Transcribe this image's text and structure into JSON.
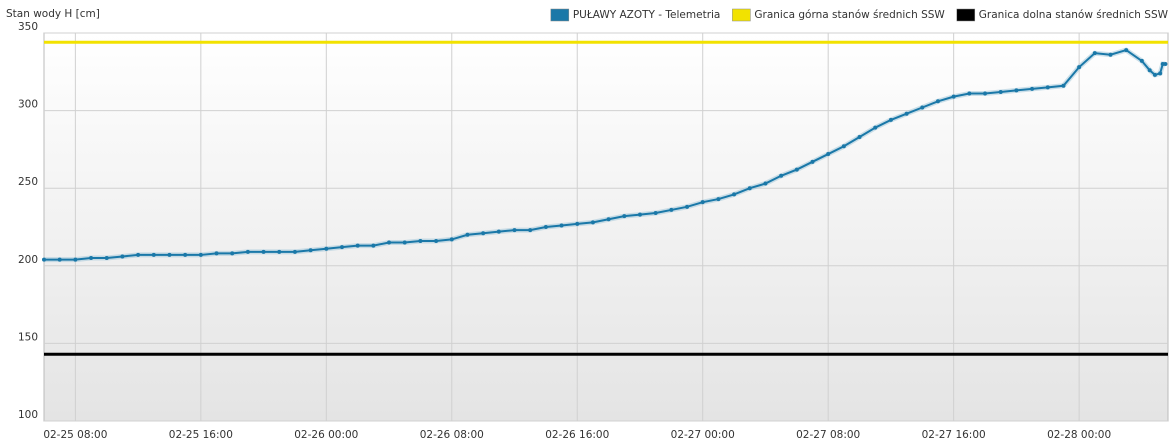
{
  "chart_data": {
    "type": "line",
    "y_label": "Stan wody H [cm]",
    "x": [
      "02-25 06:00",
      "02-25 07:00",
      "02-25 08:00",
      "02-25 09:00",
      "02-25 10:00",
      "02-25 11:00",
      "02-25 12:00",
      "02-25 13:00",
      "02-25 14:00",
      "02-25 15:00",
      "02-25 16:00",
      "02-25 17:00",
      "02-25 18:00",
      "02-25 19:00",
      "02-25 20:00",
      "02-25 21:00",
      "02-25 22:00",
      "02-25 23:00",
      "02-26 00:00",
      "02-26 01:00",
      "02-26 02:00",
      "02-26 03:00",
      "02-26 04:00",
      "02-26 05:00",
      "02-26 06:00",
      "02-26 07:00",
      "02-26 08:00",
      "02-26 09:00",
      "02-26 10:00",
      "02-26 11:00",
      "02-26 12:00",
      "02-26 13:00",
      "02-26 14:00",
      "02-26 15:00",
      "02-26 16:00",
      "02-26 17:00",
      "02-26 18:00",
      "02-26 19:00",
      "02-26 20:00",
      "02-26 21:00",
      "02-26 22:00",
      "02-26 23:00",
      "02-27 00:00",
      "02-27 01:00",
      "02-27 02:00",
      "02-27 03:00",
      "02-27 04:00",
      "02-27 05:00",
      "02-27 06:00",
      "02-27 07:00",
      "02-27 08:00",
      "02-27 09:00",
      "02-27 10:00",
      "02-27 11:00",
      "02-27 12:00",
      "02-27 13:00",
      "02-27 14:00",
      "02-27 15:00",
      "02-27 16:00",
      "02-27 17:00",
      "02-27 18:00",
      "02-27 19:00",
      "02-27 20:00",
      "02-27 21:00",
      "02-27 22:00",
      "02-27 23:00",
      "02-28 00:00",
      "02-28 01:00",
      "02-28 02:00",
      "02-28 03:00",
      "02-28 04:00",
      "02-28 04:30",
      "02-28 04:50",
      "02-28 05:10",
      "02-28 05:20",
      "02-28 05:30"
    ],
    "series": [
      {
        "name": "PUŁAWY AZOTY - Telemetria",
        "color": "#1a78a8",
        "values": [
          204,
          204,
          204,
          205,
          205,
          206,
          207,
          207,
          207,
          207,
          207,
          208,
          208,
          209,
          209,
          209,
          209,
          210,
          211,
          212,
          213,
          213,
          215,
          215,
          216,
          216,
          217,
          220,
          221,
          222,
          223,
          223,
          225,
          226,
          227,
          228,
          230,
          232,
          233,
          234,
          236,
          238,
          241,
          243,
          246,
          250,
          253,
          258,
          262,
          267,
          272,
          277,
          283,
          289,
          294,
          298,
          302,
          306,
          309,
          311,
          311,
          312,
          313,
          314,
          315,
          316,
          328,
          337,
          336,
          339,
          332,
          326,
          323,
          324,
          330,
          330
        ]
      }
    ],
    "reference_lines": [
      {
        "name": "Granica górna stanów średnich SSW",
        "color": "#f2e200",
        "value": 344
      },
      {
        "name": "Granica dolna stanów średnich SSW",
        "color": "#000000",
        "value": 143
      }
    ],
    "xlim": [
      "02-25 06:00",
      "02-28 05:40"
    ],
    "xticks": [
      "02-25 08:00",
      "02-25 16:00",
      "02-26 00:00",
      "02-26 08:00",
      "02-26 16:00",
      "02-27 00:00",
      "02-27 08:00",
      "02-27 16:00",
      "02-28 00:00"
    ],
    "ylim": [
      100,
      350
    ],
    "yticks": [
      100,
      150,
      200,
      250,
      300,
      350
    ],
    "grid": true
  }
}
